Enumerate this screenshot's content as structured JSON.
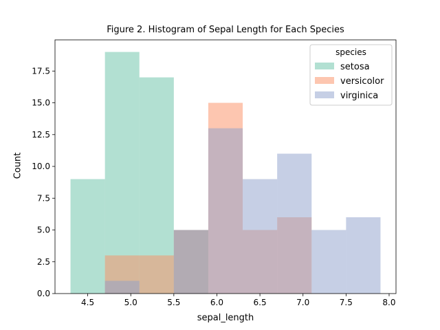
{
  "chart_data": {
    "type": "histogram",
    "title": "Figure 2. Histogram of Sepal Length for Each Species",
    "xlabel": "sepal_length",
    "ylabel": "Count",
    "xlim": [
      4.12,
      8.08
    ],
    "ylim": [
      0,
      19.95
    ],
    "xticks": [
      "4.5",
      "5.0",
      "5.5",
      "6.0",
      "6.5",
      "7.0",
      "7.5",
      "8.0"
    ],
    "yticks": [
      "0.0",
      "2.5",
      "5.0",
      "7.5",
      "10.0",
      "12.5",
      "15.0",
      "17.5"
    ],
    "xtick_values": [
      4.5,
      5.0,
      5.5,
      6.0,
      6.5,
      7.0,
      7.5,
      8.0
    ],
    "ytick_values": [
      0,
      2.5,
      5,
      7.5,
      10,
      12.5,
      15,
      17.5
    ],
    "bin_edges": [
      4.3,
      4.7,
      5.1,
      5.5,
      5.9,
      6.3,
      6.7,
      7.1,
      7.5,
      7.9
    ],
    "legend": {
      "title": "species",
      "placement": "top-right"
    },
    "series": [
      {
        "name": "setosa",
        "color": "#66c2a5",
        "counts": [
          9,
          19,
          17,
          5,
          0,
          0,
          0,
          0,
          0
        ]
      },
      {
        "name": "versicolor",
        "color": "#fc8d62",
        "counts": [
          0,
          3,
          3,
          5,
          15,
          5,
          6,
          0,
          0
        ]
      },
      {
        "name": "virginica",
        "color": "#8da0cb",
        "counts": [
          0,
          1,
          0,
          5,
          13,
          9,
          11,
          5,
          6
        ]
      }
    ],
    "bar_opacity": 0.5,
    "grid": false
  }
}
